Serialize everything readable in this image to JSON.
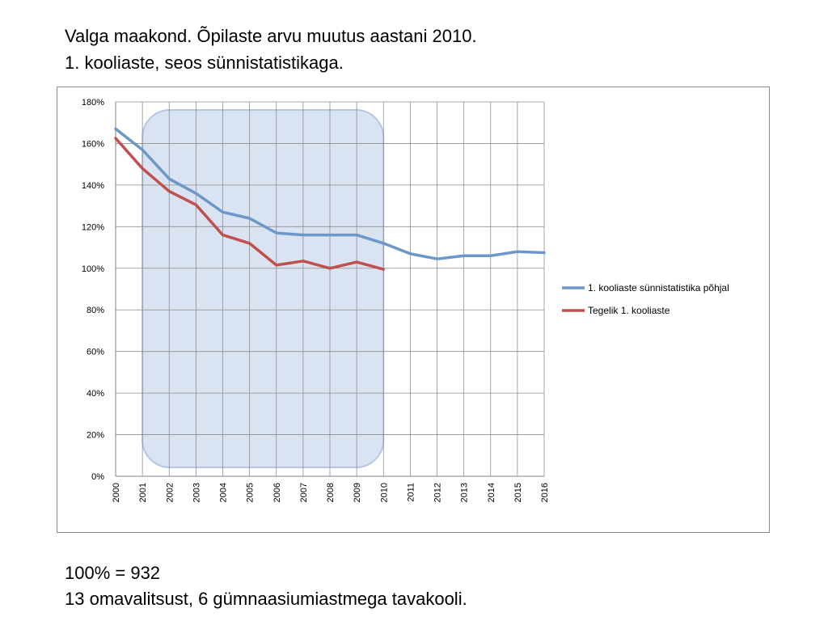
{
  "header": {
    "line1": "Valga maakond. Õpilaste arvu muutus aastani 2010.",
    "line2": "1. kooliaste, seos sünnistatistikaga."
  },
  "footer": {
    "line1": "100% = 932",
    "line2": "13 omavalitsust, 6 gümnaasiumiastmega tavakooli."
  },
  "chart_data": {
    "type": "line",
    "title": "",
    "xlabel": "",
    "ylabel": "",
    "categories": [
      "2000",
      "2001",
      "2002",
      "2003",
      "2004",
      "2005",
      "2006",
      "2007",
      "2008",
      "2009",
      "2010",
      "2011",
      "2012",
      "2013",
      "2014",
      "2015",
      "2016"
    ],
    "ylim": [
      0,
      180
    ],
    "y_ticks": [
      0,
      20,
      40,
      60,
      80,
      100,
      120,
      140,
      160,
      180
    ],
    "y_tick_labels": [
      "0%",
      "20%",
      "40%",
      "60%",
      "80%",
      "100%",
      "120%",
      "140%",
      "160%",
      "180%"
    ],
    "grid": true,
    "legend_position": "right",
    "highlight_range": [
      "2001",
      "2010"
    ],
    "series": [
      {
        "name": "1. kooliaste sünnistatistika põhjal",
        "color": "#6b97c9",
        "values": [
          167,
          157,
          143,
          136,
          127,
          124,
          117,
          116,
          116,
          116,
          112,
          107,
          104.5,
          106,
          106,
          108,
          107.5
        ]
      },
      {
        "name": "Tegelik 1. kooliaste",
        "color": "#c0504d",
        "values": [
          162.5,
          148,
          137,
          130.5,
          116,
          112,
          101.5,
          103.5,
          100,
          103,
          99.5,
          null,
          null,
          null,
          null,
          null,
          null
        ]
      }
    ]
  }
}
